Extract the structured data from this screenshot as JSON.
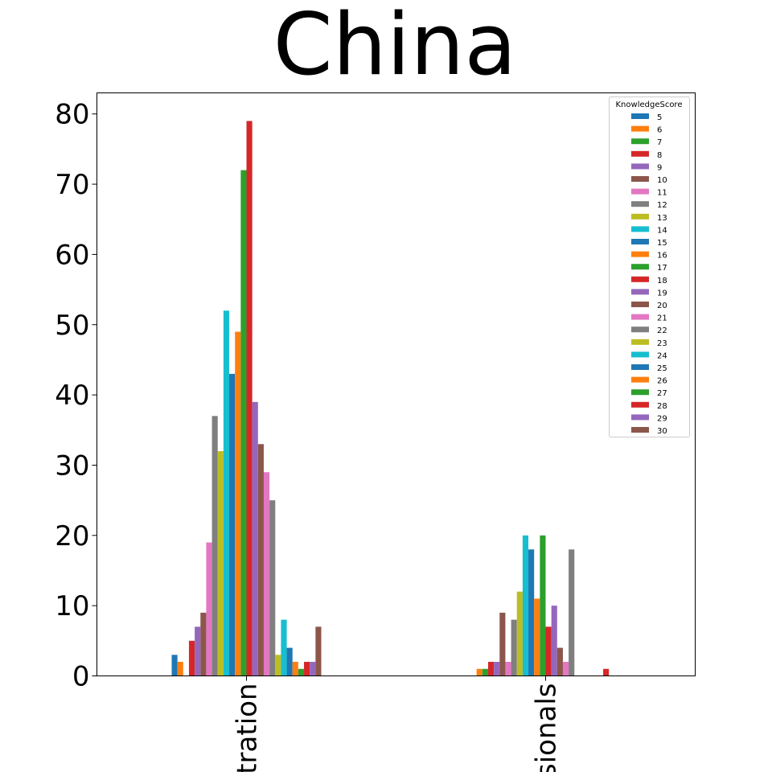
{
  "chart_data": {
    "type": "bar",
    "title": "China",
    "xlabel": "",
    "ylabel": "",
    "ylim": [
      0,
      83
    ],
    "yticks": [
      0,
      10,
      20,
      30,
      40,
      50,
      60,
      70,
      80
    ],
    "categories": [
      "tration",
      "sionals"
    ],
    "grid": false,
    "legend_title": "KnowledgeScore",
    "legend_position": "top-right",
    "series": [
      {
        "name": "5",
        "values": [
          3,
          0
        ]
      },
      {
        "name": "6",
        "values": [
          2,
          1
        ]
      },
      {
        "name": "7",
        "values": [
          0,
          1
        ]
      },
      {
        "name": "8",
        "values": [
          5,
          2
        ]
      },
      {
        "name": "9",
        "values": [
          7,
          2
        ]
      },
      {
        "name": "10",
        "values": [
          9,
          9
        ]
      },
      {
        "name": "11",
        "values": [
          19,
          2
        ]
      },
      {
        "name": "12",
        "values": [
          37,
          8
        ]
      },
      {
        "name": "13",
        "values": [
          32,
          12
        ]
      },
      {
        "name": "14",
        "values": [
          52,
          20
        ]
      },
      {
        "name": "15",
        "values": [
          43,
          18
        ]
      },
      {
        "name": "16",
        "values": [
          49,
          11
        ]
      },
      {
        "name": "17",
        "values": [
          72,
          20
        ]
      },
      {
        "name": "18",
        "values": [
          79,
          7
        ]
      },
      {
        "name": "19",
        "values": [
          39,
          10
        ]
      },
      {
        "name": "20",
        "values": [
          33,
          4
        ]
      },
      {
        "name": "21",
        "values": [
          29,
          2
        ]
      },
      {
        "name": "22",
        "values": [
          25,
          18
        ]
      },
      {
        "name": "23",
        "values": [
          3,
          0
        ]
      },
      {
        "name": "24",
        "values": [
          8,
          0
        ]
      },
      {
        "name": "25",
        "values": [
          4,
          0
        ]
      },
      {
        "name": "26",
        "values": [
          2,
          0
        ]
      },
      {
        "name": "27",
        "values": [
          1,
          0
        ]
      },
      {
        "name": "28",
        "values": [
          2,
          1
        ]
      },
      {
        "name": "29",
        "values": [
          2,
          0
        ]
      },
      {
        "name": "30",
        "values": [
          7,
          0
        ]
      }
    ],
    "colors": [
      "#1f77b4",
      "#ff7f0e",
      "#2ca02c",
      "#d62728",
      "#9467bd",
      "#8c564b",
      "#e377c2",
      "#7f7f7f",
      "#bcbd22",
      "#17becf"
    ]
  }
}
